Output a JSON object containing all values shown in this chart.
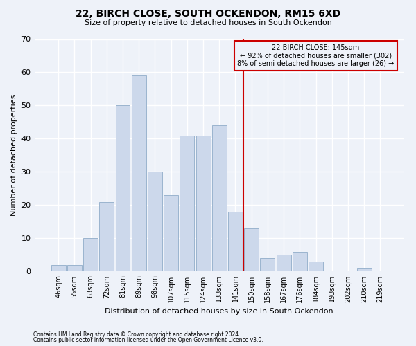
{
  "title": "22, BIRCH CLOSE, SOUTH OCKENDON, RM15 6XD",
  "subtitle": "Size of property relative to detached houses in South Ockendon",
  "xlabel": "Distribution of detached houses by size in South Ockendon",
  "ylabel": "Number of detached properties",
  "bar_color": "#ccd8eb",
  "bar_edge_color": "#9ab4ce",
  "categories": [
    "46sqm",
    "55sqm",
    "63sqm",
    "72sqm",
    "81sqm",
    "89sqm",
    "98sqm",
    "107sqm",
    "115sqm",
    "124sqm",
    "133sqm",
    "141sqm",
    "150sqm",
    "158sqm",
    "167sqm",
    "176sqm",
    "184sqm",
    "193sqm",
    "202sqm",
    "210sqm",
    "219sqm"
  ],
  "values": [
    2,
    2,
    10,
    21,
    50,
    59,
    30,
    23,
    41,
    41,
    44,
    18,
    13,
    4,
    5,
    6,
    3,
    0,
    0,
    1,
    0
  ],
  "vline_index": 12,
  "vline_color": "#cc0000",
  "annotation_line1": "22 BIRCH CLOSE: 145sqm",
  "annotation_line2": "← 92% of detached houses are smaller (302)",
  "annotation_line3": "8% of semi-detached houses are larger (26) →",
  "annotation_box_color": "#cc0000",
  "ylim": [
    0,
    70
  ],
  "yticks": [
    0,
    10,
    20,
    30,
    40,
    50,
    60,
    70
  ],
  "footer1": "Contains HM Land Registry data © Crown copyright and database right 2024.",
  "footer2": "Contains public sector information licensed under the Open Government Licence v3.0.",
  "background_color": "#eef2f9",
  "grid_color": "#ffffff"
}
